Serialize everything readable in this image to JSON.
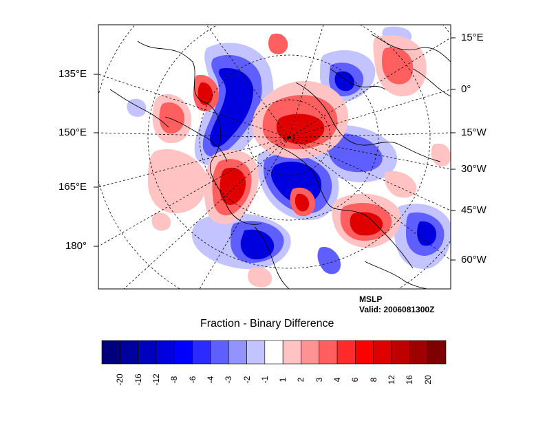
{
  "map": {
    "field": "MSLP",
    "valid": "Valid: 2006081300Z",
    "title": "Fraction - Binary Difference",
    "left_lon_labels": [
      "135°E",
      "150°E",
      "165°E",
      "180°"
    ],
    "right_lon_labels": [
      "15°E",
      "0°",
      "15°W",
      "30°W",
      "45°W",
      "60°W"
    ]
  },
  "colorbar": {
    "levels": [
      "-20",
      "-16",
      "-12",
      "-8",
      "-6",
      "-4",
      "-3",
      "-2",
      "-1",
      "1",
      "2",
      "3",
      "4",
      "6",
      "8",
      "12",
      "16",
      "20"
    ],
    "colors": [
      "#00007f",
      "#00009f",
      "#0000bf",
      "#0000df",
      "#0000ff",
      "#2b2bff",
      "#5f5fff",
      "#9393ff",
      "#c3c3ff",
      "#ffffff",
      "#ffc3c3",
      "#ff9393",
      "#ff5f5f",
      "#ff2b2b",
      "#ff0000",
      "#df0000",
      "#bf0000",
      "#9f0000",
      "#7f0000"
    ]
  },
  "colors": {
    "neg_light": "#c3c3ff",
    "neg_mid": "#5f5fff",
    "neg_strong": "#0000df",
    "pos_light": "#ffc3c3",
    "pos_mid": "#ff5f5f",
    "pos_strong": "#df0000"
  }
}
